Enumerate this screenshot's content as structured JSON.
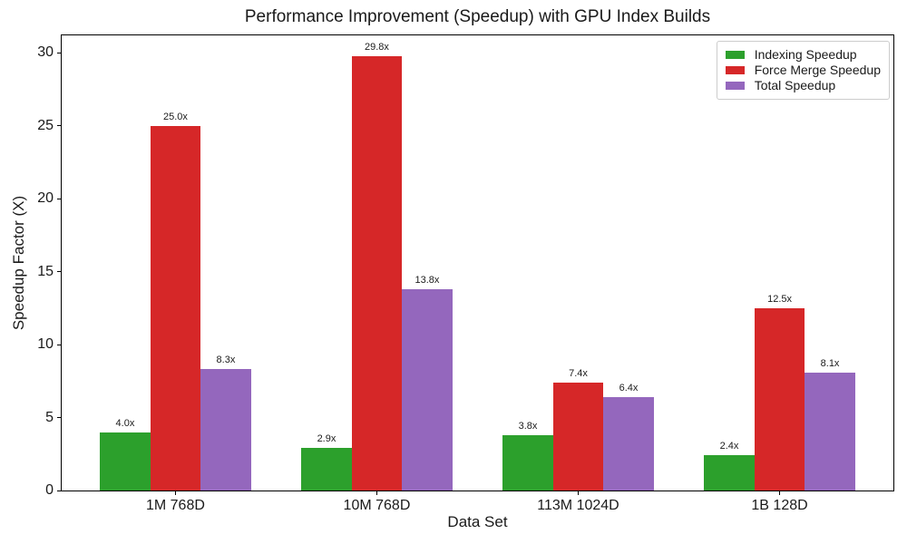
{
  "chart_data": {
    "type": "bar",
    "title": "Performance Improvement (Speedup) with GPU Index Builds",
    "xlabel": "Data Set",
    "ylabel": "Speedup Factor (X)",
    "categories": [
      "1M 768D",
      "10M 768D",
      "113M 1024D",
      "1B 128D"
    ],
    "series": [
      {
        "name": "Indexing Speedup",
        "color": "#2ca02c",
        "values": [
          4.0,
          2.9,
          3.8,
          2.4
        ],
        "labels": [
          "4.0x",
          "2.9x",
          "3.8x",
          "2.4x"
        ]
      },
      {
        "name": "Force Merge Speedup",
        "color": "#d62728",
        "values": [
          25.0,
          29.8,
          7.4,
          12.5
        ],
        "labels": [
          "25.0x",
          "29.8x",
          "7.4x",
          "12.5x"
        ]
      },
      {
        "name": "Total Speedup",
        "color": "#9467bd",
        "values": [
          8.3,
          13.8,
          6.4,
          8.1
        ],
        "labels": [
          "8.3x",
          "13.8x",
          "6.4x",
          "8.1x"
        ]
      }
    ],
    "yticks": [
      0,
      5,
      10,
      15,
      20,
      25,
      30
    ],
    "ylim": [
      0,
      31.2
    ],
    "bar_group_width": 0.75,
    "grid": false,
    "legend_position": "upper right"
  }
}
